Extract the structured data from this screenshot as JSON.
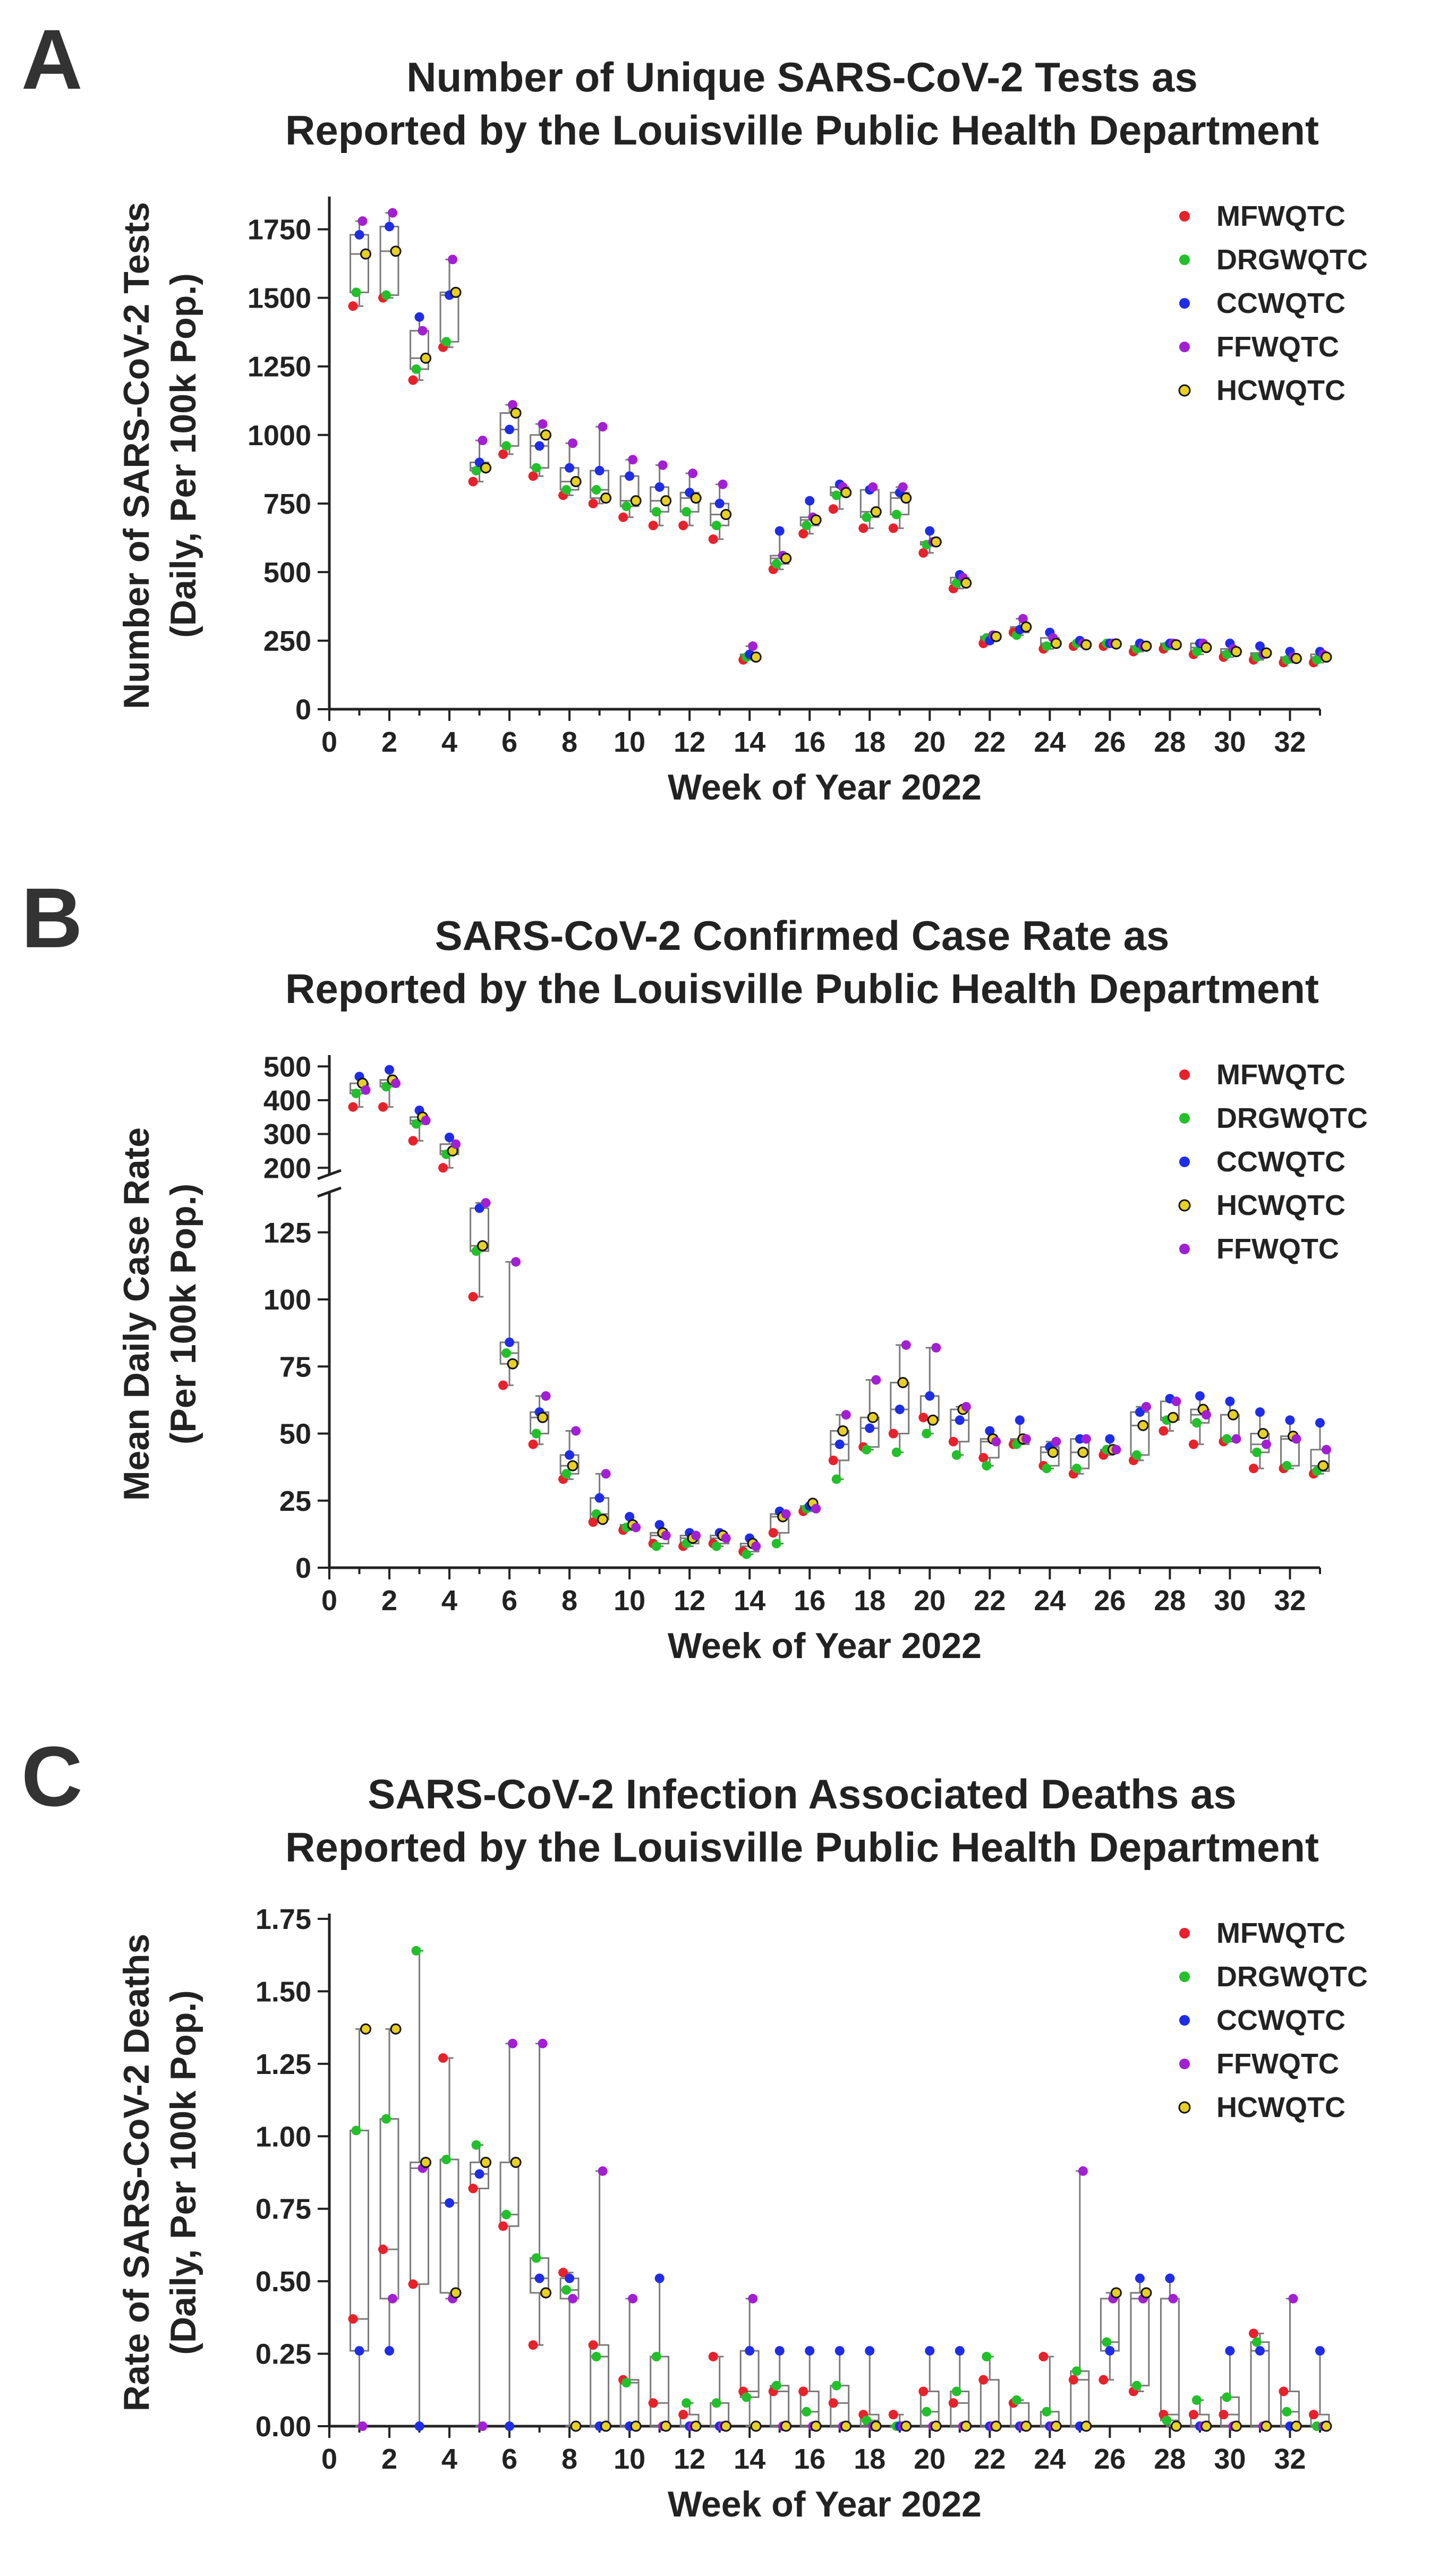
{
  "chart_data": [
    {
      "type": "box",
      "panel_label": "A",
      "title_lines": [
        "Number of Unique SARS-CoV-2 Tests as",
        "Reported by the Louisville Public Health Department"
      ],
      "xlabel": "Week of Year 2022",
      "ylabel_lines": [
        "Number of SARS-CoV-2 Tests",
        "(Daily, Per 100k Pop.)"
      ],
      "xlim": [
        0,
        33
      ],
      "xticks": [
        0,
        2,
        4,
        6,
        8,
        10,
        12,
        14,
        16,
        18,
        20,
        22,
        24,
        26,
        28,
        30,
        32
      ],
      "ylim": [
        0,
        1850
      ],
      "yticks": [
        0,
        250,
        500,
        750,
        1000,
        1250,
        1500,
        1750
      ],
      "legend": [
        {
          "name": "MFWQTC",
          "color": "#e8212a",
          "marker": "dot"
        },
        {
          "name": "DRGWQTC",
          "color": "#22c02a",
          "marker": "dot"
        },
        {
          "name": "CCWQTC",
          "color": "#1f2de8",
          "marker": "dot"
        },
        {
          "name": "FFWQTC",
          "color": "#a21fd4",
          "marker": "dot"
        },
        {
          "name": "HCWQTC",
          "color": "#e8d020",
          "marker": "ring"
        }
      ],
      "series_order": [
        "MFWQTC",
        "DRGWQTC",
        "CCWQTC",
        "FFWQTC",
        "HCWQTC"
      ],
      "weeks": [
        1,
        2,
        3,
        4,
        5,
        6,
        7,
        8,
        9,
        10,
        11,
        12,
        13,
        14,
        15,
        16,
        17,
        18,
        19,
        20,
        21,
        22,
        23,
        24,
        25,
        26,
        27,
        28,
        29,
        30,
        31,
        32,
        33
      ],
      "values": [
        [
          1470,
          1520,
          1730,
          1780,
          1660
        ],
        [
          1500,
          1510,
          1760,
          1810,
          1670
        ],
        [
          1200,
          1240,
          1430,
          1380,
          1280
        ],
        [
          1320,
          1340,
          1510,
          1640,
          1520
        ],
        [
          830,
          870,
          900,
          980,
          880
        ],
        [
          930,
          960,
          1020,
          1110,
          1080
        ],
        [
          850,
          880,
          960,
          1040,
          1000
        ],
        [
          780,
          800,
          880,
          970,
          830
        ],
        [
          750,
          800,
          870,
          1030,
          770
        ],
        [
          700,
          740,
          850,
          910,
          760
        ],
        [
          670,
          720,
          810,
          890,
          760
        ],
        [
          670,
          720,
          790,
          860,
          770
        ],
        [
          620,
          670,
          750,
          820,
          710
        ],
        [
          180,
          190,
          200,
          230,
          190
        ],
        [
          510,
          530,
          650,
          560,
          550
        ],
        [
          640,
          670,
          760,
          700,
          690
        ],
        [
          730,
          780,
          820,
          810,
          790
        ],
        [
          660,
          700,
          800,
          810,
          720
        ],
        [
          660,
          710,
          790,
          810,
          770
        ],
        [
          570,
          600,
          650,
          610,
          610
        ],
        [
          440,
          460,
          490,
          480,
          460
        ],
        [
          240,
          260,
          250,
          270,
          265
        ],
        [
          280,
          270,
          290,
          330,
          300
        ],
        [
          220,
          230,
          280,
          260,
          240
        ],
        [
          230,
          240,
          250,
          240,
          235
        ],
        [
          230,
          240,
          240,
          240,
          238
        ],
        [
          210,
          220,
          240,
          230,
          230
        ],
        [
          220,
          230,
          240,
          240,
          235
        ],
        [
          200,
          210,
          240,
          240,
          225
        ],
        [
          190,
          200,
          240,
          220,
          210
        ],
        [
          180,
          190,
          230,
          200,
          205
        ],
        [
          170,
          180,
          210,
          190,
          185
        ],
        [
          170,
          180,
          210,
          200,
          190
        ]
      ]
    },
    {
      "type": "box",
      "panel_label": "B",
      "title_lines": [
        "SARS-CoV-2 Confirmed Case Rate as",
        "Reported by the Louisville Public Health Department"
      ],
      "xlabel": "Week of Year 2022",
      "ylabel_lines": [
        "Mean Daily Case Rate",
        "(Per 100k Pop.)"
      ],
      "xlim": [
        0,
        33
      ],
      "xticks": [
        0,
        2,
        4,
        6,
        8,
        10,
        12,
        14,
        16,
        18,
        20,
        22,
        24,
        26,
        28,
        30,
        32
      ],
      "ylim": [
        0,
        140
      ],
      "yticks": [
        0,
        25,
        50,
        75,
        100,
        125
      ],
      "broken_axis": {
        "lower_max": 140,
        "upper_range": [
          180,
          510
        ],
        "upper_ticks": [
          200,
          300,
          400,
          500
        ]
      },
      "legend": [
        {
          "name": "MFWQTC",
          "color": "#e8212a",
          "marker": "dot"
        },
        {
          "name": "DRGWQTC",
          "color": "#22c02a",
          "marker": "dot"
        },
        {
          "name": "CCWQTC",
          "color": "#1f2de8",
          "marker": "dot"
        },
        {
          "name": "HCWQTC",
          "color": "#e8d020",
          "marker": "ring"
        },
        {
          "name": "FFWQTC",
          "color": "#a21fd4",
          "marker": "dot"
        }
      ],
      "series_order": [
        "MFWQTC",
        "DRGWQTC",
        "CCWQTC",
        "HCWQTC",
        "FFWQTC"
      ],
      "weeks": [
        1,
        2,
        3,
        4,
        5,
        6,
        7,
        8,
        9,
        10,
        11,
        12,
        13,
        14,
        15,
        16,
        17,
        18,
        19,
        20,
        21,
        22,
        23,
        24,
        25,
        26,
        27,
        28,
        29,
        30,
        31,
        32,
        33
      ],
      "values": [
        [
          380,
          420,
          470,
          450,
          430
        ],
        [
          380,
          440,
          490,
          460,
          450
        ],
        [
          280,
          330,
          370,
          350,
          340
        ],
        [
          200,
          240,
          290,
          250,
          270
        ],
        [
          101,
          118,
          134,
          120,
          136
        ],
        [
          68,
          80,
          84,
          76,
          114
        ],
        [
          46,
          50,
          58,
          56,
          64
        ],
        [
          33,
          35,
          42,
          38,
          51
        ],
        [
          17,
          20,
          26,
          18,
          35
        ],
        [
          14,
          15,
          19,
          16,
          15
        ],
        [
          9,
          8,
          16,
          13,
          12
        ],
        [
          8,
          9,
          13,
          11,
          12
        ],
        [
          9,
          8,
          13,
          12,
          11
        ],
        [
          6,
          5,
          11,
          9,
          8
        ],
        [
          13,
          9,
          21,
          19,
          20
        ],
        [
          21,
          22,
          23,
          24,
          22
        ],
        [
          40,
          33,
          46,
          51,
          57
        ],
        [
          45,
          44,
          52,
          56,
          70
        ],
        [
          50,
          43,
          59,
          69,
          83
        ],
        [
          56,
          50,
          64,
          55,
          82
        ],
        [
          47,
          42,
          55,
          59,
          60
        ],
        [
          41,
          38,
          51,
          48,
          47
        ],
        [
          46,
          46,
          55,
          48,
          48
        ],
        [
          38,
          37,
          45,
          43,
          47
        ],
        [
          35,
          37,
          48,
          43,
          48
        ],
        [
          42,
          44,
          48,
          44,
          44
        ],
        [
          40,
          42,
          58,
          53,
          60
        ],
        [
          51,
          55,
          63,
          56,
          62
        ],
        [
          46,
          54,
          64,
          59,
          57
        ],
        [
          47,
          48,
          62,
          57,
          48
        ],
        [
          37,
          43,
          58,
          50,
          46
        ],
        [
          37,
          38,
          55,
          49,
          48
        ],
        [
          35,
          36,
          54,
          38,
          44
        ]
      ]
    },
    {
      "type": "box",
      "panel_label": "C",
      "title_lines": [
        "SARS-CoV-2 Infection Associated Deaths as",
        "Reported by the Louisville Public Health Department"
      ],
      "xlabel": "Week of Year 2022",
      "ylabel_lines": [
        "Rate of SARS-CoV-2 Deaths",
        "(Daily, Per 100k Pop.)"
      ],
      "xlim": [
        0,
        33
      ],
      "xticks": [
        0,
        2,
        4,
        6,
        8,
        10,
        12,
        14,
        16,
        18,
        20,
        22,
        24,
        26,
        28,
        30,
        32
      ],
      "ylim": [
        0,
        1.75
      ],
      "yticks": [
        0,
        0.25,
        0.5,
        0.75,
        1,
        1.25,
        1.5,
        1.75
      ],
      "ytick_labels": [
        "0.00",
        "0.25",
        "0.50",
        "0.75",
        "1.00",
        "1.25",
        "1.50",
        "1.75"
      ],
      "legend": [
        {
          "name": "MFWQTC",
          "color": "#e8212a",
          "marker": "dot"
        },
        {
          "name": "DRGWQTC",
          "color": "#22c02a",
          "marker": "dot"
        },
        {
          "name": "CCWQTC",
          "color": "#1f2de8",
          "marker": "dot"
        },
        {
          "name": "FFWQTC",
          "color": "#a21fd4",
          "marker": "dot"
        },
        {
          "name": "HCWQTC",
          "color": "#e8d020",
          "marker": "ring"
        }
      ],
      "series_order": [
        "MFWQTC",
        "DRGWQTC",
        "CCWQTC",
        "FFWQTC",
        "HCWQTC"
      ],
      "weeks": [
        1,
        2,
        3,
        4,
        5,
        6,
        7,
        8,
        9,
        10,
        11,
        12,
        13,
        14,
        15,
        16,
        17,
        18,
        19,
        20,
        21,
        22,
        23,
        24,
        25,
        26,
        27,
        28,
        29,
        30,
        31,
        32,
        33
      ],
      "values": [
        [
          0.37,
          1.02,
          0.26,
          0.0,
          1.37
        ],
        [
          0.61,
          1.06,
          0.26,
          0.44,
          1.37
        ],
        [
          0.49,
          1.64,
          0.0,
          0.89,
          0.91
        ],
        [
          1.27,
          0.92,
          0.77,
          0.44,
          0.46
        ],
        [
          0.82,
          0.97,
          0.87,
          0.0,
          0.91
        ],
        [
          0.69,
          0.73,
          0.0,
          1.32,
          0.91
        ],
        [
          0.28,
          0.58,
          0.51,
          1.32,
          0.46
        ],
        [
          0.53,
          0.47,
          0.51,
          0.44,
          0.0
        ],
        [
          0.28,
          0.24,
          0.0,
          0.88,
          0.0
        ],
        [
          0.16,
          0.15,
          0.0,
          0.44,
          0.0
        ],
        [
          0.08,
          0.24,
          0.51,
          0.0,
          0.0
        ],
        [
          0.04,
          0.08,
          0.0,
          0.0,
          0.0
        ],
        [
          0.24,
          0.08,
          0.0,
          0.0,
          0.0
        ],
        [
          0.12,
          0.1,
          0.26,
          0.44,
          0.0
        ],
        [
          0.12,
          0.14,
          0.26,
          0.0,
          0.0
        ],
        [
          0.12,
          0.05,
          0.26,
          0.0,
          0.0
        ],
        [
          0.08,
          0.14,
          0.26,
          0.0,
          0.0
        ],
        [
          0.04,
          0.02,
          0.26,
          0.0,
          0.0
        ],
        [
          0.04,
          0.0,
          0.0,
          0.0,
          0.0
        ],
        [
          0.12,
          0.05,
          0.26,
          0.0,
          0.0
        ],
        [
          0.08,
          0.12,
          0.26,
          0.0,
          0.0
        ],
        [
          0.16,
          0.24,
          0.0,
          0.0,
          0.0
        ],
        [
          0.08,
          0.09,
          0.0,
          0.0,
          0.0
        ],
        [
          0.24,
          0.05,
          0.0,
          0.0,
          0.0
        ],
        [
          0.16,
          0.19,
          0.0,
          0.88,
          0.0
        ],
        [
          0.16,
          0.29,
          0.26,
          0.44,
          0.46
        ],
        [
          0.12,
          0.14,
          0.51,
          0.44,
          0.46
        ],
        [
          0.04,
          0.02,
          0.51,
          0.44,
          0.0
        ],
        [
          0.04,
          0.09,
          0.0,
          0.0,
          0.0
        ],
        [
          0.04,
          0.1,
          0.26,
          0.0,
          0.0
        ],
        [
          0.32,
          0.29,
          0.26,
          0.0,
          0.0
        ],
        [
          0.12,
          0.05,
          0.0,
          0.44,
          0.0
        ],
        [
          0.04,
          0.0,
          0.26,
          0.0,
          0.0
        ]
      ]
    }
  ]
}
